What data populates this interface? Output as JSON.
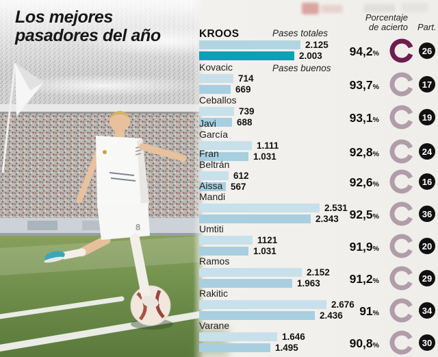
{
  "title": {
    "line1": "Los mejores",
    "line2": "pasadores del año"
  },
  "header": {
    "accuracy_line1": "Porcentaje",
    "accuracy_line2": "de acierto",
    "part": "Part."
  },
  "legend": {
    "totals": "Pases totales",
    "good": "Pases buenos"
  },
  "colors": {
    "bar_total": "#c8e0ea",
    "bar_good": "#a8cfe0",
    "bar_total_highlight": "#b0d5e1",
    "bar_good_highlight": "#0c9fb6",
    "ring": "#b19da9",
    "ring_highlight": "#6d1d4e",
    "badge_bg": "#111111",
    "badge_text": "#ffffff"
  },
  "chart_data": {
    "type": "bar",
    "title": "Los mejores pasadores del año",
    "series_labels": [
      "Pases totales",
      "Pases buenos"
    ],
    "xlim": [
      0,
      2800
    ],
    "players": [
      {
        "name": "KROOS",
        "name_lines": [
          "KROOS"
        ],
        "total": 2125,
        "total_label": "2.125",
        "good": 2003,
        "good_label": "2.003",
        "accuracy_pct": 94.2,
        "accuracy_label": "94,2",
        "part": "26",
        "highlight": true
      },
      {
        "name": "Kovacic",
        "name_lines": [
          "Kovacic"
        ],
        "total": 714,
        "total_label": "714",
        "good": 669,
        "good_label": "669",
        "accuracy_pct": 93.7,
        "accuracy_label": "93,7",
        "part": "17",
        "highlight": false
      },
      {
        "name": "Ceballos",
        "name_lines": [
          "Ceballos"
        ],
        "total": 739,
        "total_label": "739",
        "good": 688,
        "good_label": "688",
        "accuracy_pct": 93.1,
        "accuracy_label": "93,1",
        "part": "19",
        "highlight": false
      },
      {
        "name": "Javi García",
        "name_lines": [
          "Javi",
          "García"
        ],
        "total": 1111,
        "total_label": "1.111",
        "good": 1031,
        "good_label": "1.031",
        "accuracy_pct": 92.8,
        "accuracy_label": "92,8",
        "part": "24",
        "highlight": false
      },
      {
        "name": "Fran Beltrán",
        "name_lines": [
          "Fran",
          "Beltrán"
        ],
        "total": 612,
        "total_label": "612",
        "good": 567,
        "good_label": "567",
        "accuracy_pct": 92.6,
        "accuracy_label": "92,6",
        "part": "16",
        "highlight": false
      },
      {
        "name": "Aissa Mandi",
        "name_lines": [
          "Aissa",
          "Mandi"
        ],
        "total": 2531,
        "total_label": "2.531",
        "good": 2343,
        "good_label": "2.343",
        "accuracy_pct": 92.5,
        "accuracy_label": "92,5",
        "part": "36",
        "highlight": false
      },
      {
        "name": "Umtiti",
        "name_lines": [
          "Umtiti"
        ],
        "total": 1121,
        "total_label": "1121",
        "good": 1031,
        "good_label": "1.031",
        "accuracy_pct": 91.9,
        "accuracy_label": "91,9",
        "part": "20",
        "highlight": false
      },
      {
        "name": "Ramos",
        "name_lines": [
          "Ramos"
        ],
        "total": 2152,
        "total_label": "2.152",
        "good": 1963,
        "good_label": "1.963",
        "accuracy_pct": 91.2,
        "accuracy_label": "91,2",
        "part": "29",
        "highlight": false
      },
      {
        "name": "Rakitic",
        "name_lines": [
          "Rakitic"
        ],
        "total": 2676,
        "total_label": "2.676",
        "good": 2436,
        "good_label": "2.436",
        "accuracy_pct": 91.0,
        "accuracy_label": "91",
        "part": "34",
        "highlight": false
      },
      {
        "name": "Varane",
        "name_lines": [
          "Varane"
        ],
        "total": 1646,
        "total_label": "1.646",
        "good": 1495,
        "good_label": "1.495",
        "accuracy_pct": 90.8,
        "accuracy_label": "90,8",
        "part": "30",
        "highlight": false
      }
    ]
  }
}
